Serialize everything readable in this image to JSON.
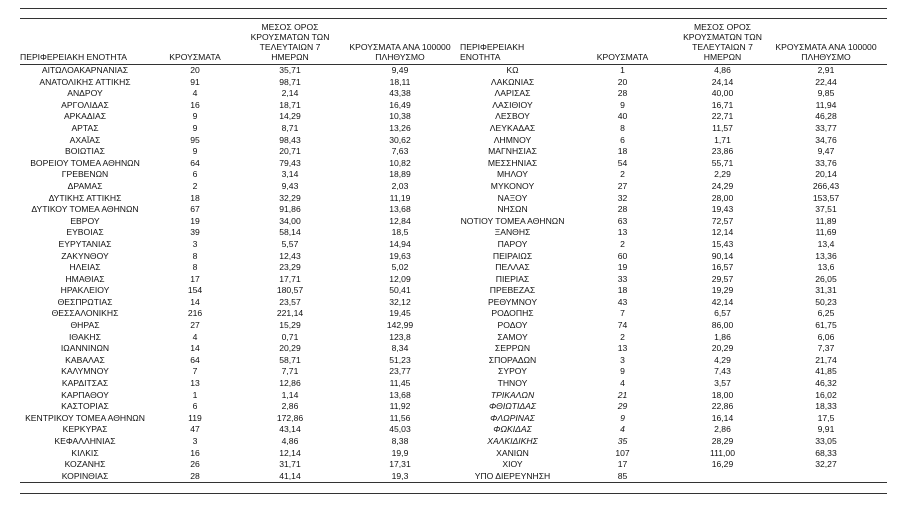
{
  "header": {
    "left": [
      "ΠΕΡΙΦΕΡΕΙΑΚΗ ΕΝΟΤΗΤΑ",
      "ΚΡΟΥΣΜΑΤΑ",
      "ΜΕΣΟΣ ΟΡΟΣ ΚΡΟΥΣΜΑΤΩΝ ΤΩΝ ΤΕΛΕΥΤΑΙΩΝ 7 ΗΜΕΡΩΝ",
      "ΚΡΟΥΣΜΑΤΑ ΑΝΑ 100000 ΠΛΗΘΥΣΜΟ"
    ],
    "right": [
      "ΠΕΡΙΦΕΡΕΙΑΚΗ ΕΝΟΤΗΤΑ",
      "ΚΡΟΥΣΜΑΤΑ",
      "ΜΕΣΟΣ ΟΡΟΣ ΚΡΟΥΣΜΑΤΩΝ ΤΩΝ ΤΕΛΕΥΤΑΙΩΝ 7 ΗΜΕΡΩΝ",
      "ΚΡΟΥΣΜΑΤΑ ΑΝΑ 100000 ΠΛΗΘΥΣΜΟ"
    ]
  },
  "table": {
    "left": [
      [
        "ΑΙΤΩΛΟΑΚΑΡΝΑΝΙΑΣ",
        "20",
        "35,71",
        "9,49"
      ],
      [
        "ΑΝΑΤΟΛΙΚΗΣ ΑΤΤΙΚΗΣ",
        "91",
        "98,71",
        "18,11"
      ],
      [
        "ΑΝΔΡΟΥ",
        "4",
        "2,14",
        "43,38"
      ],
      [
        "ΑΡΓΟΛΙΔΑΣ",
        "16",
        "18,71",
        "16,49"
      ],
      [
        "ΑΡΚΑΔΙΑΣ",
        "9",
        "14,29",
        "10,38"
      ],
      [
        "ΑΡΤΑΣ",
        "9",
        "8,71",
        "13,26"
      ],
      [
        "ΑΧΑΪΑΣ",
        "95",
        "98,43",
        "30,62"
      ],
      [
        "ΒΟΙΩΤΙΑΣ",
        "9",
        "20,71",
        "7,63"
      ],
      [
        "ΒΟΡΕΙΟΥ ΤΟΜΕΑ ΑΘΗΝΩΝ",
        "64",
        "79,43",
        "10,82"
      ],
      [
        "ΓΡΕΒΕΝΩΝ",
        "6",
        "3,14",
        "18,89"
      ],
      [
        "ΔΡΑΜΑΣ",
        "2",
        "9,43",
        "2,03"
      ],
      [
        "ΔΥΤΙΚΗΣ ΑΤΤΙΚΗΣ",
        "18",
        "32,29",
        "11,19"
      ],
      [
        "ΔΥΤΙΚΟΥ ΤΟΜΕΑ ΑΘΗΝΩΝ",
        "67",
        "91,86",
        "13,68"
      ],
      [
        "ΕΒΡΟΥ",
        "19",
        "34,00",
        "12,84"
      ],
      [
        "ΕΥΒΟΙΑΣ",
        "39",
        "58,14",
        "18,5"
      ],
      [
        "ΕΥΡΥΤΑΝΙΑΣ",
        "3",
        "5,57",
        "14,94"
      ],
      [
        "ΖΑΚΥΝΘΟΥ",
        "8",
        "12,43",
        "19,63"
      ],
      [
        "ΗΛΕΙΑΣ",
        "8",
        "23,29",
        "5,02"
      ],
      [
        "ΗΜΑΘΙΑΣ",
        "17",
        "17,71",
        "12,09"
      ],
      [
        "ΗΡΑΚΛΕΙΟΥ",
        "154",
        "180,57",
        "50,41"
      ],
      [
        "ΘΕΣΠΡΩΤΙΑΣ",
        "14",
        "23,57",
        "32,12"
      ],
      [
        "ΘΕΣΣΑΛΟΝΙΚΗΣ",
        "216",
        "221,14",
        "19,45"
      ],
      [
        "ΘΗΡΑΣ",
        "27",
        "15,29",
        "142,99"
      ],
      [
        "ΙΘΑΚΗΣ",
        "4",
        "0,71",
        "123,8"
      ],
      [
        "ΙΩΑΝΝΙΝΩΝ",
        "14",
        "20,29",
        "8,34"
      ],
      [
        "ΚΑΒΑΛΑΣ",
        "64",
        "58,71",
        "51,23"
      ],
      [
        "ΚΑΛΥΜΝΟΥ",
        "7",
        "7,71",
        "23,77"
      ],
      [
        "ΚΑΡΔΙΤΣΑΣ",
        "13",
        "12,86",
        "11,45"
      ],
      [
        "ΚΑΡΠΑΘΟΥ",
        "1",
        "1,14",
        "13,68"
      ],
      [
        "ΚΑΣΤΟΡΙΑΣ",
        "6",
        "2,86",
        "11,92"
      ],
      [
        "ΚΕΝΤΡΙΚΟΥ ΤΟΜΕΑ ΑΘΗΝΩΝ",
        "119",
        "172,86",
        "11,56"
      ],
      [
        "ΚΕΡΚΥΡΑΣ",
        "47",
        "43,14",
        "45,03"
      ],
      [
        "ΚΕΦΑΛΛΗΝΙΑΣ",
        "3",
        "4,86",
        "8,38"
      ],
      [
        "ΚΙΛΚΙΣ",
        "16",
        "12,14",
        "19,9"
      ],
      [
        "ΚΟΖΑΝΗΣ",
        "26",
        "31,71",
        "17,31"
      ],
      [
        "ΚΟΡΙΝΘΙΑΣ",
        "28",
        "41,14",
        "19,3"
      ]
    ],
    "right": [
      [
        "ΚΩ",
        "1",
        "4,86",
        "2,91"
      ],
      [
        "ΛΑΚΩΝΙΑΣ",
        "20",
        "24,14",
        "22,44"
      ],
      [
        "ΛΑΡΙΣΑΣ",
        "28",
        "40,00",
        "9,85"
      ],
      [
        "ΛΑΣΙΘΙΟΥ",
        "9",
        "16,71",
        "11,94"
      ],
      [
        "ΛΕΣΒΟΥ",
        "40",
        "22,71",
        "46,28"
      ],
      [
        "ΛΕΥΚΑΔΑΣ",
        "8",
        "11,57",
        "33,77"
      ],
      [
        "ΛΗΜΝΟΥ",
        "6",
        "1,71",
        "34,76"
      ],
      [
        "ΜΑΓΝΗΣΙΑΣ",
        "18",
        "23,86",
        "9,47"
      ],
      [
        "ΜΕΣΣΗΝΙΑΣ",
        "54",
        "55,71",
        "33,76"
      ],
      [
        "ΜΗΛΟΥ",
        "2",
        "2,29",
        "20,14"
      ],
      [
        "ΜΥΚΟΝΟΥ",
        "27",
        "24,29",
        "266,43"
      ],
      [
        "ΝΑΞΟΥ",
        "32",
        "28,00",
        "153,57"
      ],
      [
        "ΝΗΣΩΝ",
        "28",
        "19,43",
        "37,51"
      ],
      [
        "ΝΟΤΙΟΥ ΤΟΜΕΑ ΑΘΗΝΩΝ",
        "63",
        "72,57",
        "11,89"
      ],
      [
        "ΞΑΝΘΗΣ",
        "13",
        "12,14",
        "11,69"
      ],
      [
        "ΠΑΡΟΥ",
        "2",
        "15,43",
        "13,4"
      ],
      [
        "ΠΕΙΡΑΙΩΣ",
        "60",
        "90,14",
        "13,36"
      ],
      [
        "ΠΕΛΛΑΣ",
        "19",
        "16,57",
        "13,6"
      ],
      [
        "ΠΙΕΡΙΑΣ",
        "33",
        "29,57",
        "26,05"
      ],
      [
        "ΠΡΕΒΕΖΑΣ",
        "18",
        "19,29",
        "31,31"
      ],
      [
        "ΡΕΘΥΜΝΟΥ",
        "43",
        "42,14",
        "50,23"
      ],
      [
        "ΡΟΔΟΠΗΣ",
        "7",
        "6,57",
        "6,25"
      ],
      [
        "ΡΟΔΟΥ",
        "74",
        "86,00",
        "61,75"
      ],
      [
        "ΣΑΜΟΥ",
        "2",
        "1,86",
        "6,06"
      ],
      [
        "ΣΕΡΡΩΝ",
        "13",
        "20,29",
        "7,37"
      ],
      [
        "ΣΠΟΡΑΔΩΝ",
        "3",
        "4,29",
        "21,74"
      ],
      [
        "ΣΥΡΟΥ",
        "9",
        "7,43",
        "41,85"
      ],
      [
        "ΤΗΝΟΥ",
        "4",
        "3,57",
        "46,32"
      ],
      [
        "ΤΡΙΚΑΛΩΝ",
        "21",
        "18,00",
        "16,02"
      ],
      [
        "ΦΘΙΩΤΙΔΑΣ",
        "29",
        "22,86",
        "18,33"
      ],
      [
        "ΦΛΩΡΙΝΑΣ",
        "9",
        "16,14",
        "17,5"
      ],
      [
        "ΦΩΚΙΔΑΣ",
        "4",
        "2,86",
        "9,91"
      ],
      [
        "ΧΑΛΚΙΔΙΚΗΣ",
        "35",
        "28,29",
        "33,05"
      ],
      [
        "ΧΑΝΙΩΝ",
        "107",
        "111,00",
        "68,33"
      ],
      [
        "ΧΙΟΥ",
        "17",
        "16,29",
        "32,27"
      ],
      [
        "ΥΠΟ ΔΙΕΡΕΥΝΗΣΗ",
        "85"
      ]
    ]
  }
}
